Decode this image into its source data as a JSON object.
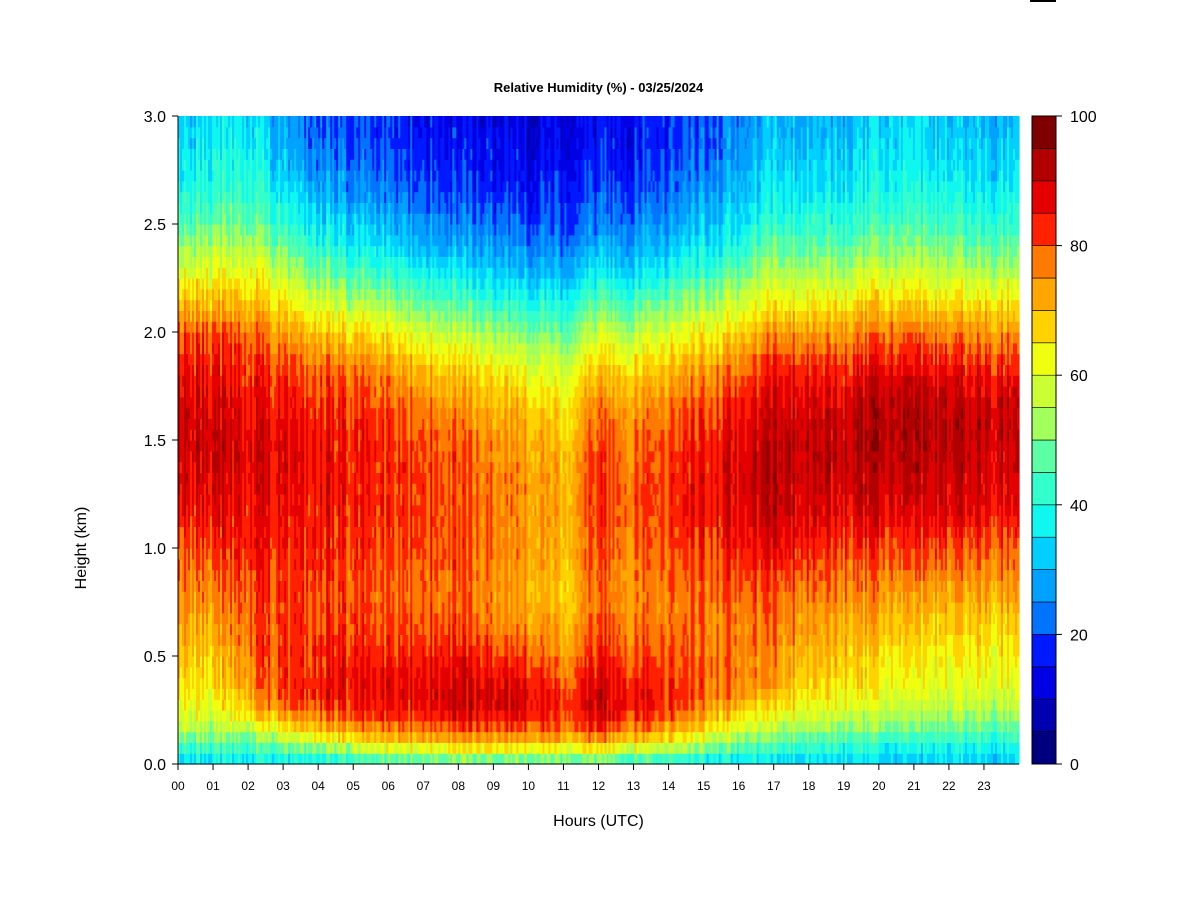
{
  "chart_data": {
    "type": "heatmap",
    "title": "Relative Humidity (%) - 03/25/2024",
    "xlabel": "Hours (UTC)",
    "ylabel": "Height (km)",
    "xlim": [
      0,
      24
    ],
    "ylim": [
      0.0,
      3.0
    ],
    "x_ticks": [
      "00",
      "01",
      "02",
      "03",
      "04",
      "05",
      "06",
      "07",
      "08",
      "09",
      "10",
      "11",
      "12",
      "13",
      "14",
      "15",
      "16",
      "17",
      "18",
      "19",
      "20",
      "21",
      "22",
      "23"
    ],
    "y_ticks": [
      "0.0",
      "0.5",
      "1.0",
      "1.5",
      "2.0",
      "2.5",
      "3.0"
    ],
    "colorbar": {
      "min": 0,
      "max": 100,
      "tick_labels": [
        "0",
        "20",
        "40",
        "60",
        "80",
        "100"
      ],
      "tick_values": [
        0,
        20,
        40,
        60,
        80,
        100
      ],
      "levels": 20,
      "colors": [
        "#00007f",
        "#0000b2",
        "#0000e5",
        "#0019ff",
        "#0047ff",
        "#0074ff",
        "#00a1ff",
        "#00cfff",
        "#0ff7ef",
        "#33ffcc",
        "#5cffa3",
        "#80ff80",
        "#a3ff5c",
        "#ccff33",
        "#f0ff0f",
        "#ffd200",
        "#ffa600",
        "#ff7a00",
        "#ff4e00",
        "#ff2100",
        "#e50000",
        "#b20000",
        "#7f0000"
      ]
    },
    "grid": false,
    "hours": [
      0,
      1,
      2,
      3,
      4,
      5,
      6,
      7,
      8,
      9,
      10,
      11,
      12,
      13,
      14,
      15,
      16,
      17,
      18,
      19,
      20,
      21,
      22,
      23,
      24
    ],
    "heights_km": [
      0.0,
      0.05,
      0.1,
      0.15,
      0.2,
      0.25,
      0.3,
      0.35,
      0.4,
      0.5,
      0.6,
      0.7,
      0.8,
      0.9,
      1.0,
      1.1,
      1.2,
      1.3,
      1.4,
      1.5,
      1.6,
      1.7,
      1.8,
      1.9,
      2.0,
      2.1,
      2.2,
      2.3,
      2.4,
      2.5,
      2.6,
      2.7,
      2.8,
      2.9,
      3.0
    ],
    "rh_profiles_pct": [
      [
        34,
        40,
        48,
        55,
        60,
        62,
        64,
        66,
        67,
        70,
        73,
        75,
        76,
        78,
        80,
        83,
        87,
        88,
        89,
        90,
        90,
        89,
        87,
        84,
        80,
        72,
        66,
        58,
        52,
        46,
        42,
        38,
        36,
        34,
        33
      ],
      [
        34,
        40,
        46,
        52,
        57,
        60,
        62,
        64,
        66,
        68,
        71,
        74,
        76,
        79,
        82,
        85,
        87,
        88,
        89,
        90,
        89,
        88,
        86,
        83,
        79,
        73,
        67,
        60,
        54,
        48,
        44,
        40,
        38,
        36,
        35
      ],
      [
        35,
        40,
        46,
        54,
        62,
        68,
        72,
        74,
        76,
        77,
        78,
        79,
        80,
        82,
        84,
        85,
        86,
        87,
        88,
        88,
        87,
        86,
        84,
        82,
        78,
        72,
        67,
        61,
        55,
        49,
        45,
        42,
        39,
        37,
        35
      ],
      [
        35,
        42,
        52,
        62,
        70,
        76,
        80,
        82,
        82,
        82,
        82,
        82,
        82,
        83,
        84,
        85,
        86,
        87,
        87,
        87,
        86,
        84,
        82,
        78,
        74,
        68,
        61,
        55,
        48,
        42,
        38,
        34,
        31,
        29,
        28
      ],
      [
        36,
        46,
        58,
        68,
        76,
        81,
        84,
        85,
        85,
        84,
        83,
        82,
        82,
        83,
        84,
        85,
        86,
        86,
        86,
        86,
        85,
        83,
        80,
        76,
        70,
        62,
        55,
        48,
        41,
        36,
        32,
        28,
        25,
        23,
        22
      ],
      [
        38,
        50,
        62,
        72,
        78,
        83,
        86,
        86,
        86,
        84,
        82,
        81,
        80,
        81,
        82,
        83,
        84,
        84,
        84,
        84,
        83,
        81,
        78,
        73,
        66,
        58,
        50,
        43,
        37,
        32,
        28,
        24,
        22,
        20,
        19
      ],
      [
        40,
        54,
        66,
        74,
        80,
        84,
        86,
        86,
        85,
        83,
        80,
        79,
        78,
        79,
        80,
        81,
        82,
        82,
        82,
        82,
        81,
        78,
        75,
        70,
        63,
        55,
        47,
        40,
        34,
        29,
        25,
        22,
        20,
        18,
        17
      ],
      [
        42,
        56,
        68,
        76,
        82,
        86,
        88,
        88,
        87,
        85,
        82,
        80,
        79,
        80,
        81,
        82,
        82,
        82,
        82,
        81,
        79,
        76,
        72,
        66,
        59,
        51,
        44,
        37,
        31,
        27,
        23,
        20,
        18,
        16,
        15
      ],
      [
        42,
        57,
        70,
        78,
        84,
        88,
        90,
        90,
        88,
        85,
        82,
        79,
        78,
        79,
        80,
        80,
        80,
        80,
        79,
        78,
        76,
        73,
        69,
        63,
        56,
        48,
        41,
        34,
        28,
        24,
        21,
        18,
        16,
        15,
        14
      ],
      [
        42,
        58,
        70,
        78,
        84,
        88,
        89,
        88,
        86,
        82,
        78,
        76,
        75,
        76,
        77,
        77,
        77,
        77,
        76,
        75,
        73,
        70,
        66,
        60,
        53,
        45,
        38,
        32,
        27,
        23,
        20,
        17,
        15,
        14,
        13
      ],
      [
        42,
        58,
        70,
        79,
        85,
        88,
        89,
        88,
        85,
        81,
        77,
        74,
        73,
        74,
        75,
        75,
        75,
        75,
        74,
        73,
        71,
        68,
        63,
        57,
        50,
        43,
        36,
        30,
        25,
        21,
        18,
        16,
        14,
        13,
        12
      ],
      [
        42,
        56,
        68,
        76,
        80,
        82,
        82,
        80,
        78,
        74,
        71,
        69,
        68,
        69,
        70,
        70,
        70,
        70,
        69,
        68,
        66,
        63,
        59,
        53,
        47,
        40,
        34,
        28,
        24,
        20,
        18,
        16,
        14,
        13,
        12
      ],
      [
        42,
        58,
        70,
        80,
        86,
        89,
        90,
        89,
        87,
        84,
        81,
        79,
        78,
        79,
        80,
        81,
        82,
        82,
        81,
        80,
        78,
        75,
        70,
        64,
        57,
        49,
        42,
        35,
        29,
        24,
        21,
        18,
        16,
        15,
        14
      ],
      [
        40,
        54,
        66,
        76,
        82,
        86,
        87,
        86,
        84,
        81,
        79,
        77,
        76,
        77,
        78,
        79,
        80,
        80,
        79,
        78,
        76,
        73,
        69,
        63,
        56,
        48,
        41,
        34,
        29,
        25,
        22,
        19,
        17,
        16,
        15
      ],
      [
        38,
        50,
        62,
        72,
        78,
        82,
        84,
        83,
        82,
        80,
        78,
        77,
        77,
        78,
        80,
        81,
        82,
        82,
        81,
        80,
        78,
        75,
        71,
        66,
        59,
        51,
        44,
        37,
        31,
        27,
        24,
        21,
        19,
        18,
        17
      ],
      [
        36,
        46,
        56,
        64,
        70,
        75,
        78,
        79,
        79,
        78,
        77,
        77,
        78,
        80,
        82,
        84,
        86,
        86,
        85,
        84,
        82,
        79,
        75,
        70,
        63,
        56,
        49,
        42,
        36,
        31,
        28,
        25,
        23,
        21,
        20
      ],
      [
        34,
        42,
        50,
        58,
        64,
        70,
        74,
        76,
        77,
        77,
        77,
        78,
        80,
        82,
        85,
        87,
        88,
        89,
        89,
        88,
        86,
        83,
        79,
        74,
        68,
        61,
        54,
        47,
        41,
        36,
        33,
        30,
        28,
        26,
        25
      ],
      [
        34,
        40,
        46,
        52,
        58,
        64,
        68,
        72,
        74,
        75,
        76,
        78,
        80,
        83,
        86,
        89,
        91,
        92,
        92,
        91,
        90,
        88,
        85,
        80,
        74,
        67,
        60,
        53,
        47,
        42,
        38,
        35,
        33,
        31,
        30
      ],
      [
        34,
        40,
        46,
        52,
        58,
        63,
        66,
        68,
        70,
        72,
        74,
        76,
        79,
        82,
        85,
        88,
        90,
        91,
        92,
        92,
        91,
        89,
        86,
        81,
        75,
        68,
        61,
        54,
        48,
        43,
        39,
        36,
        34,
        32,
        31
      ],
      [
        33,
        38,
        44,
        50,
        55,
        60,
        63,
        65,
        67,
        69,
        71,
        73,
        76,
        79,
        82,
        85,
        88,
        90,
        91,
        91,
        90,
        88,
        85,
        80,
        74,
        67,
        60,
        53,
        47,
        42,
        38,
        35,
        33,
        31,
        30
      ],
      [
        32,
        36,
        42,
        48,
        53,
        57,
        60,
        62,
        64,
        66,
        69,
        72,
        75,
        78,
        82,
        86,
        89,
        91,
        92,
        93,
        93,
        91,
        88,
        83,
        77,
        70,
        63,
        56,
        50,
        45,
        41,
        38,
        36,
        34,
        33
      ],
      [
        32,
        36,
        41,
        47,
        52,
        56,
        59,
        61,
        63,
        65,
        68,
        71,
        74,
        78,
        82,
        86,
        89,
        91,
        92,
        93,
        93,
        92,
        89,
        84,
        78,
        71,
        64,
        57,
        51,
        46,
        42,
        39,
        37,
        35,
        34
      ],
      [
        32,
        36,
        41,
        46,
        51,
        55,
        58,
        60,
        62,
        64,
        67,
        70,
        73,
        77,
        81,
        85,
        88,
        90,
        91,
        92,
        92,
        90,
        87,
        82,
        76,
        69,
        62,
        55,
        49,
        44,
        40,
        37,
        35,
        33,
        32
      ],
      [
        32,
        36,
        41,
        46,
        51,
        55,
        58,
        60,
        62,
        64,
        67,
        70,
        73,
        77,
        80,
        84,
        87,
        89,
        90,
        91,
        91,
        89,
        86,
        81,
        75,
        68,
        61,
        54,
        48,
        43,
        39,
        36,
        34,
        32,
        31
      ],
      [
        32,
        36,
        41,
        46,
        51,
        55,
        58,
        60,
        62,
        64,
        67,
        70,
        73,
        77,
        80,
        84,
        87,
        89,
        90,
        91,
        91,
        89,
        86,
        81,
        75,
        68,
        61,
        54,
        48,
        43,
        39,
        36,
        34,
        32,
        31
      ]
    ],
    "annotations": []
  }
}
